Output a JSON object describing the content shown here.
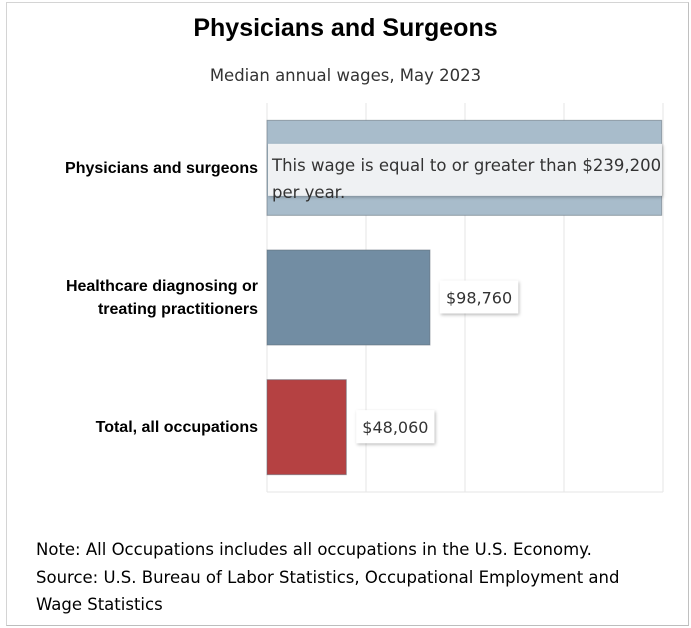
{
  "chart_data": {
    "type": "bar",
    "orientation": "horizontal",
    "title": "Physicians and Surgeons",
    "subtitle": "Median annual wages, May 2023",
    "categories": [
      [
        "Physicians and surgeons"
      ],
      [
        "Healthcare diagnosing or",
        "treating practitioners"
      ],
      [
        "Total, all occupations"
      ]
    ],
    "values": [
      239200,
      98760,
      48060
    ],
    "value_labels": [
      "",
      "$98,760",
      "$48,060"
    ],
    "tooltip": [
      "This wage is equal to or greater than $239,200",
      "per year."
    ],
    "colors": [
      "#a8bccb",
      "#728da3",
      "#b54142"
    ],
    "xlim": [
      0,
      240000
    ],
    "grid": true,
    "xlabel": "",
    "ylabel": ""
  },
  "notes": {
    "note": "Note: All Occupations includes all occupations in the U.S. Economy.",
    "source": "Source: U.S. Bureau of Labor Statistics, Occupational Employment and Wage Statistics"
  }
}
